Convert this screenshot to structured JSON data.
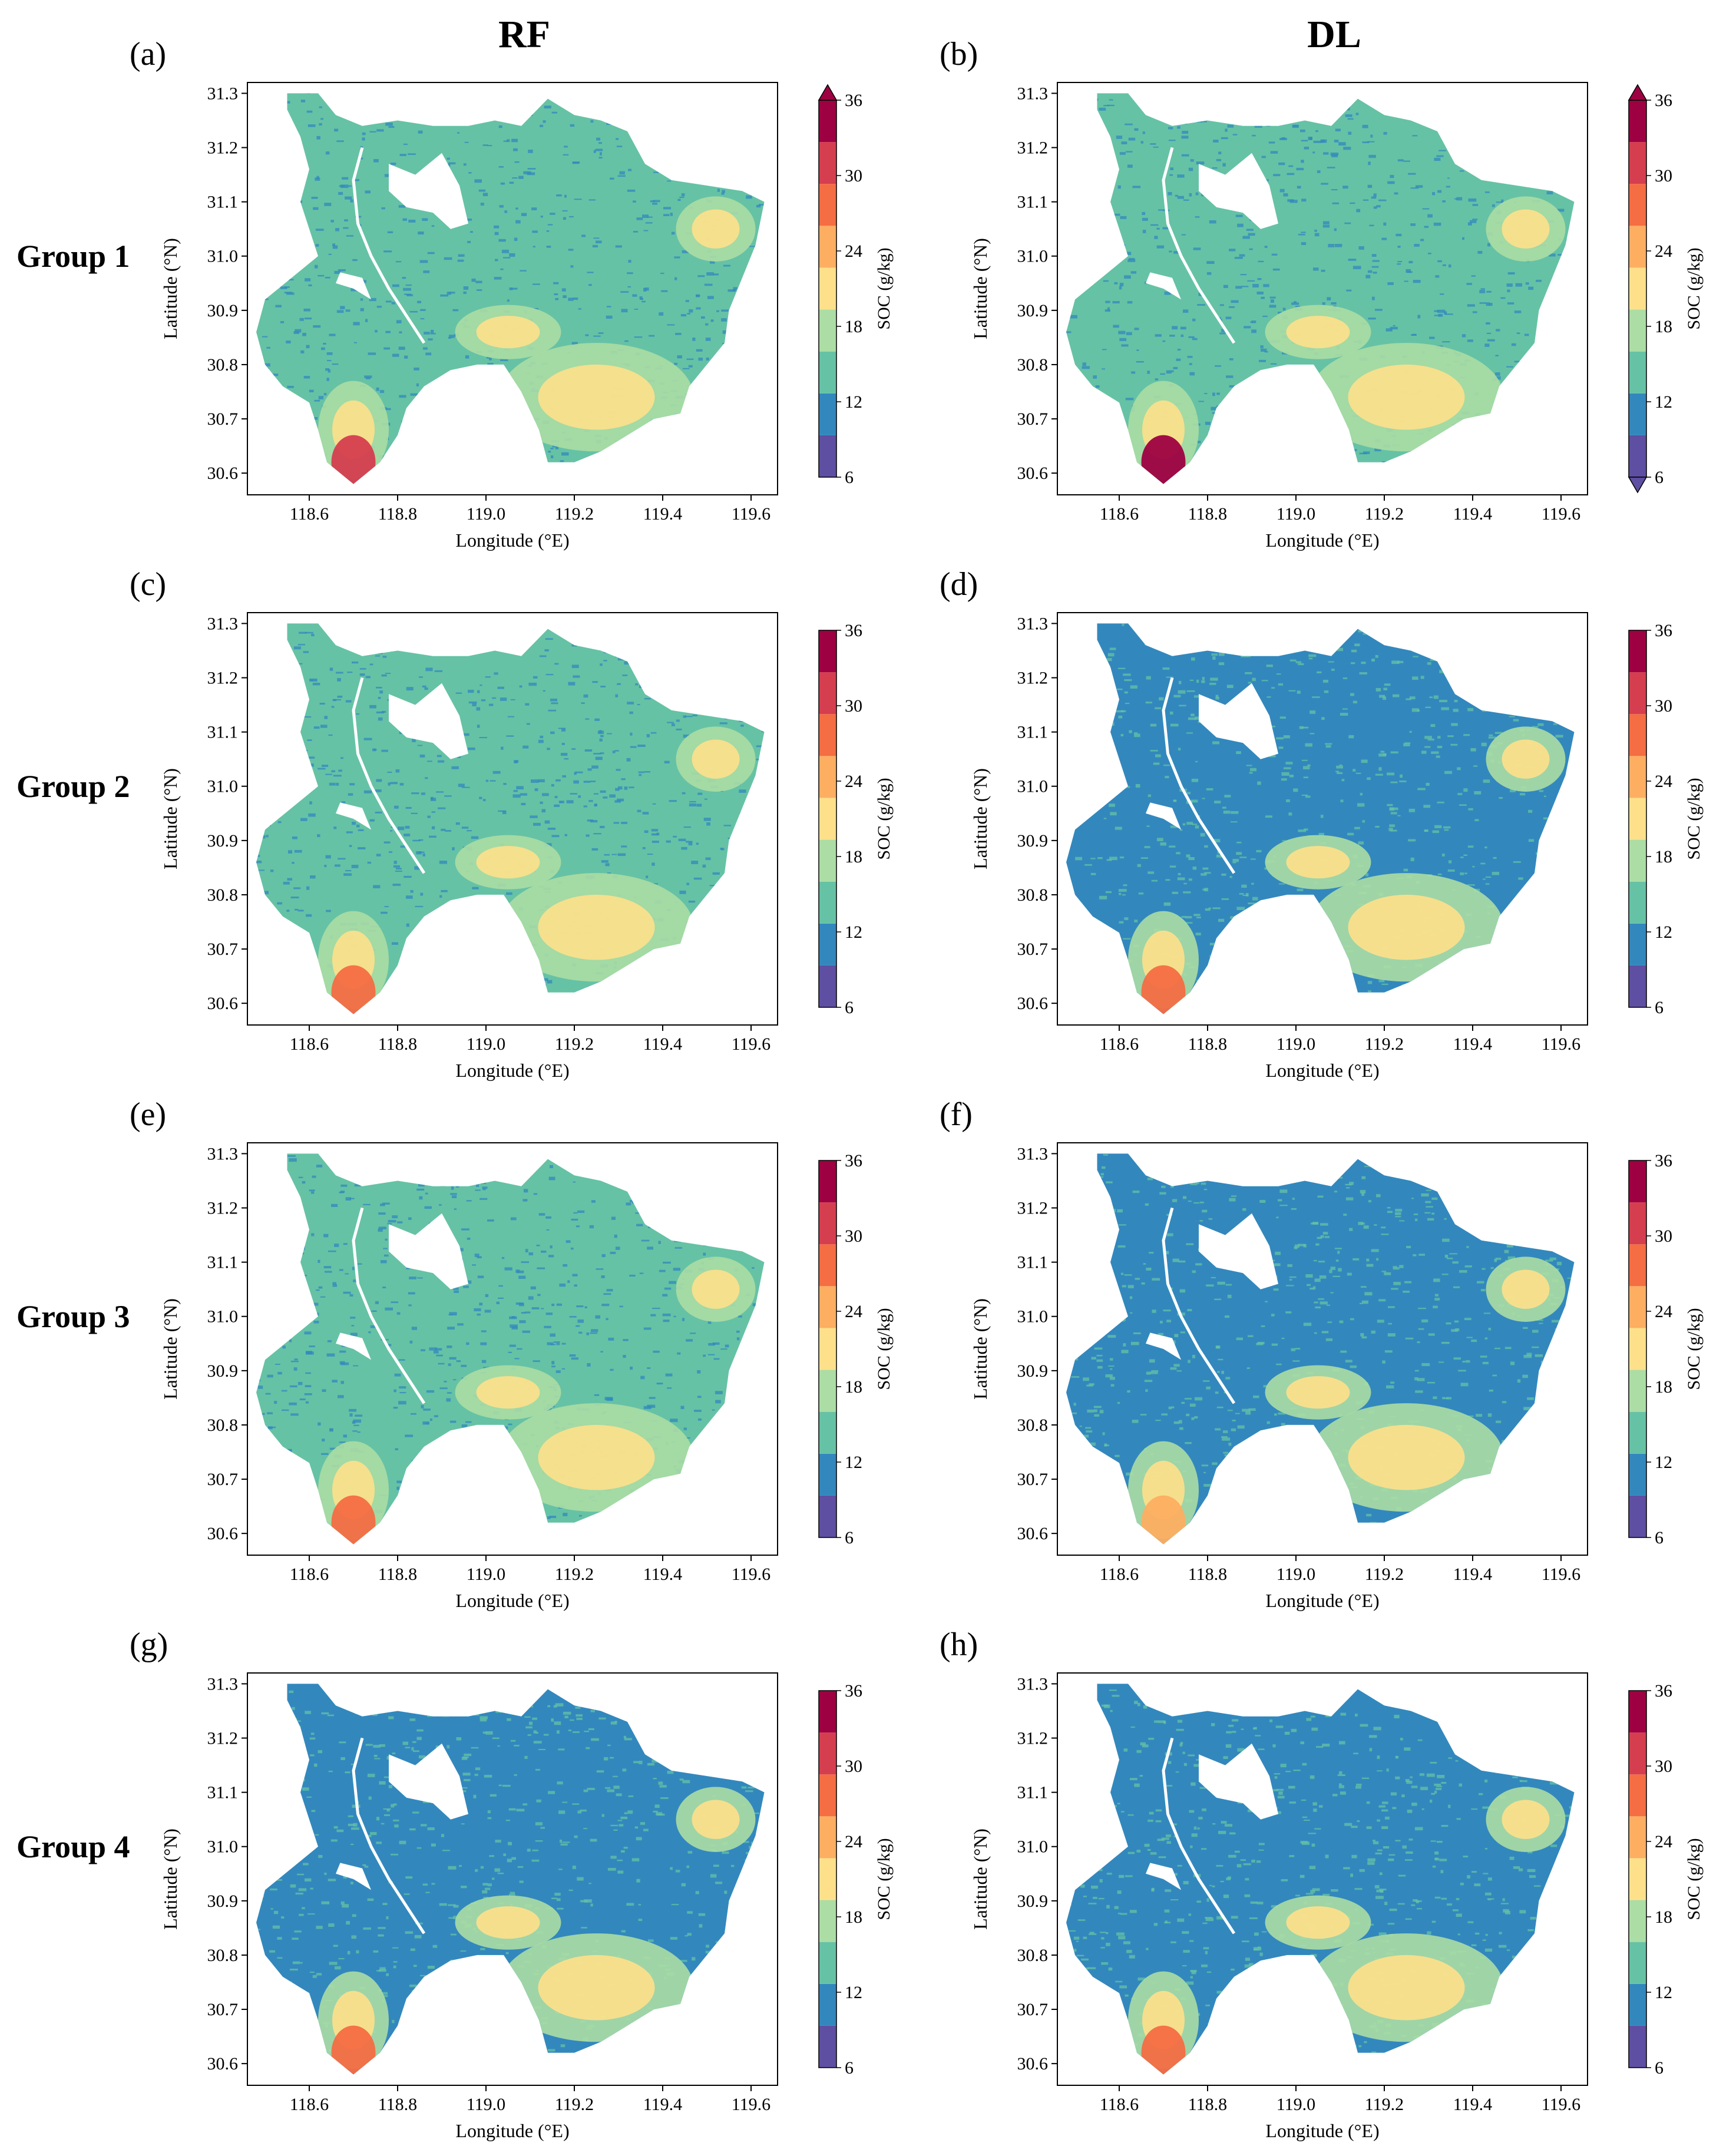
{
  "column_titles": [
    "RF",
    "DL"
  ],
  "row_labels": [
    "Group 1",
    "Group 2",
    "Group 3",
    "Group 4"
  ],
  "colors": {
    "colormap": [
      "#5e4fa2",
      "#3288bd",
      "#66c2a5",
      "#abdda4",
      "#fee08b",
      "#fdae61",
      "#f46d43",
      "#d53e4f",
      "#9e0142"
    ],
    "water": "#ffffff",
    "frame": "#000000"
  },
  "chart_data": {
    "type": "heatmap",
    "description_of_mark": "spatial raster maps of soil organic carbon",
    "x_ticks": [
      "118.6",
      "118.8",
      "119.0",
      "119.2",
      "119.4",
      "119.6"
    ],
    "x_tick_values": [
      118.6,
      118.8,
      119.0,
      119.2,
      119.4,
      119.6
    ],
    "y_ticks": [
      "31.3",
      "31.2",
      "31.1",
      "31.0",
      "30.9",
      "30.8",
      "30.7",
      "30.6"
    ],
    "y_tick_values": [
      31.3,
      31.2,
      31.1,
      31.0,
      30.9,
      30.8,
      30.7,
      30.6
    ],
    "xlim": [
      118.46,
      119.66
    ],
    "ylim": [
      30.56,
      31.32
    ],
    "xlabel": "Longitude (°E)",
    "ylabel": "Latitude (°N)",
    "colorbar": {
      "label": "SOC (g/kg)",
      "ticks": [
        "36",
        "30",
        "24",
        "18",
        "12",
        "6"
      ],
      "tick_values": [
        36,
        30,
        24,
        18,
        12,
        6
      ],
      "range": [
        6,
        36
      ],
      "n_bins": 9
    },
    "panels": [
      {
        "id": "a",
        "label": "(a)",
        "group": "Group 1",
        "model": "RF",
        "dominant_class": 2,
        "south_hot_class": 7,
        "extend": "max"
      },
      {
        "id": "b",
        "label": "(b)",
        "group": "Group 1",
        "model": "DL",
        "dominant_class": 2,
        "south_hot_class": 8,
        "extend": "both"
      },
      {
        "id": "c",
        "label": "(c)",
        "group": "Group 2",
        "model": "RF",
        "dominant_class": 2,
        "south_hot_class": 6,
        "extend": "neither"
      },
      {
        "id": "d",
        "label": "(d)",
        "group": "Group 2",
        "model": "DL",
        "dominant_class": 1,
        "south_hot_class": 6,
        "extend": "neither"
      },
      {
        "id": "e",
        "label": "(e)",
        "group": "Group 3",
        "model": "RF",
        "dominant_class": 2,
        "south_hot_class": 6,
        "extend": "neither"
      },
      {
        "id": "f",
        "label": "(f)",
        "group": "Group 3",
        "model": "DL",
        "dominant_class": 1,
        "south_hot_class": 5,
        "extend": "neither"
      },
      {
        "id": "g",
        "label": "(g)",
        "group": "Group 4",
        "model": "RF",
        "dominant_class": 1,
        "south_hot_class": 6,
        "extend": "neither"
      },
      {
        "id": "h",
        "label": "(h)",
        "group": "Group 4",
        "model": "DL",
        "dominant_class": 1,
        "south_hot_class": 6,
        "extend": "neither"
      }
    ]
  }
}
